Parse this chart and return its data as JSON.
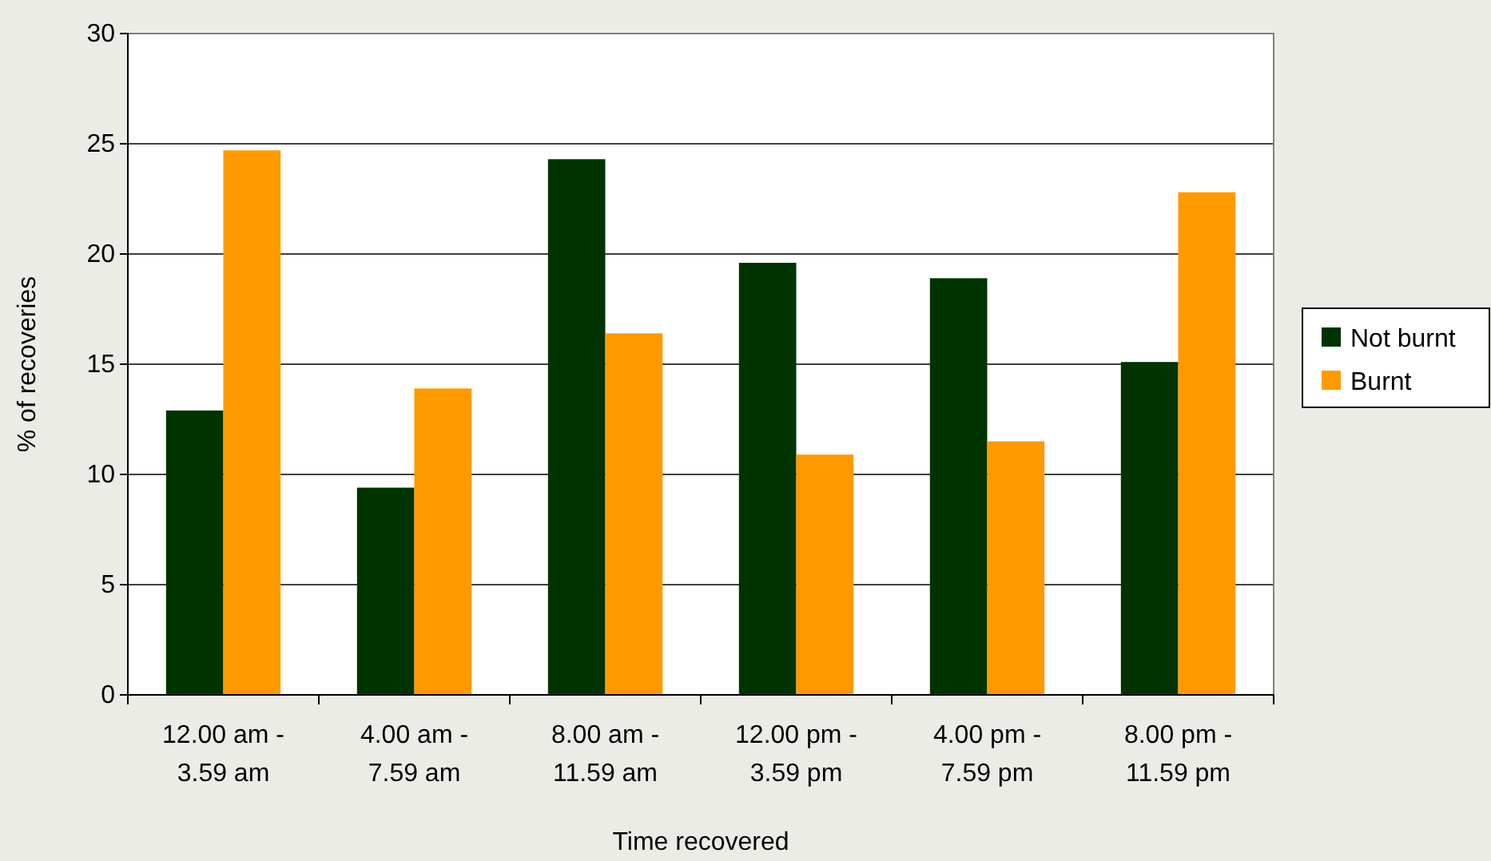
{
  "chart_data": {
    "type": "bar",
    "xlabel": "Time recovered",
    "ylabel": "% of recoveries",
    "categories": [
      "12.00 am - 3.59 am",
      "4.00 am - 7.59 am",
      "8.00 am - 11.59 am",
      "12.00 pm - 3.59 pm",
      "4.00 pm - 7.59 pm",
      "8.00 pm - 11.59 pm"
    ],
    "series": [
      {
        "name": "Not burnt",
        "color": "#003300",
        "values": [
          12.9,
          9.4,
          24.3,
          19.6,
          18.9,
          15.1
        ]
      },
      {
        "name": "Burnt",
        "color": "#ff9900",
        "values": [
          24.7,
          13.9,
          16.4,
          10.9,
          11.5,
          22.8
        ]
      }
    ],
    "ylim": [
      0,
      30
    ],
    "yticks": [
      0,
      5,
      10,
      15,
      20,
      25,
      30
    ],
    "grid": "y",
    "legend": "right"
  }
}
